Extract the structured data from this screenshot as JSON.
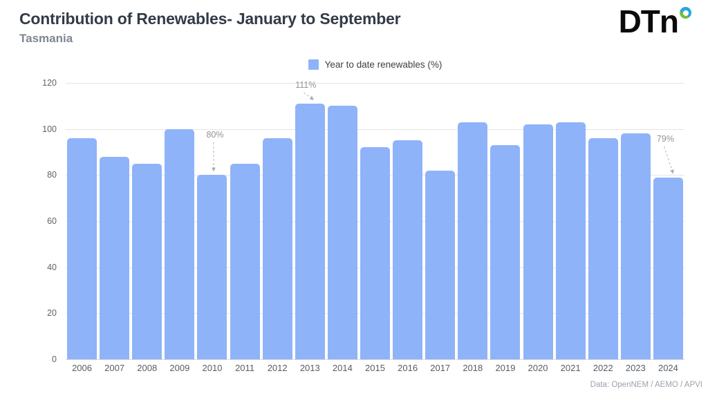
{
  "header": {
    "title": "Contribution of Renewables- January to September",
    "subtitle": "Tasmania"
  },
  "logo": {
    "text": "DTn",
    "ring_icon": "degree-ring"
  },
  "legend": {
    "label": "Year to date renewables (%)"
  },
  "footer": {
    "source": "Data: OpenNEM / AEMO /  APVI"
  },
  "colors": {
    "bar": "#8fb3f9",
    "grid": "#e5e5e5",
    "zero_line": "#d9d9d9",
    "axis_text": "#5f6368",
    "annotation_text": "#8f9398",
    "annotation_line": "#b0b4b8",
    "title": "#333b47",
    "subtitle": "#7f8690",
    "footer": "#9aa3ae",
    "logo_black": "#0b0b0b",
    "logo_blue": "#2ba6df",
    "logo_green": "#71bf44"
  },
  "chart_data": {
    "type": "bar",
    "title": "Contribution of Renewables- January to September",
    "subtitle": "Tasmania",
    "series_name": "Year to date renewables (%)",
    "categories": [
      "2006",
      "2007",
      "2008",
      "2009",
      "2010",
      "2011",
      "2012",
      "2013",
      "2014",
      "2015",
      "2016",
      "2017",
      "2018",
      "2019",
      "2020",
      "2021",
      "2022",
      "2023",
      "2024"
    ],
    "values": [
      96,
      88,
      85,
      100,
      80,
      85,
      96,
      111,
      110,
      92,
      95,
      82,
      103,
      93,
      102,
      103,
      96,
      98,
      79
    ],
    "unit": "%",
    "ylim": [
      0,
      120
    ],
    "yticks": [
      0,
      20,
      40,
      60,
      80,
      100,
      120
    ],
    "grid": true,
    "legend_position": "top-center",
    "annotations": [
      {
        "category": "2010",
        "label": "80%"
      },
      {
        "category": "2013",
        "label": "111%"
      },
      {
        "category": "2024",
        "label": "79%"
      }
    ],
    "source": "Data: OpenNEM / AEMO /  APVI"
  }
}
